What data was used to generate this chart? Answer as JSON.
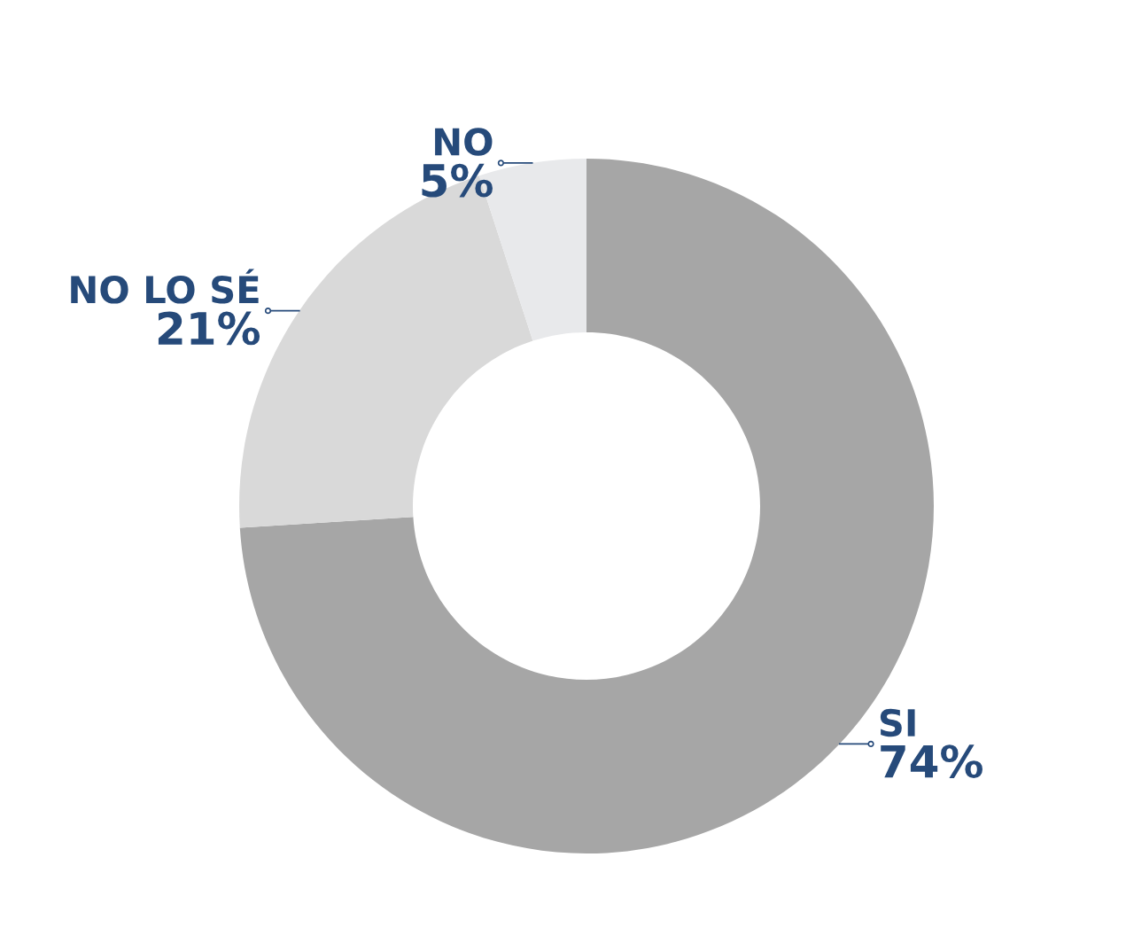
{
  "chart_data": {
    "type": "donut",
    "categories": [
      "SI",
      "NO LO SÉ",
      "NO"
    ],
    "values": [
      74,
      21,
      5
    ],
    "colors": [
      "#a6a6a6",
      "#d9d9d9",
      "#e8e9eb"
    ],
    "value_labels": [
      "74%",
      "21%",
      "5%"
    ],
    "legend": false
  }
}
